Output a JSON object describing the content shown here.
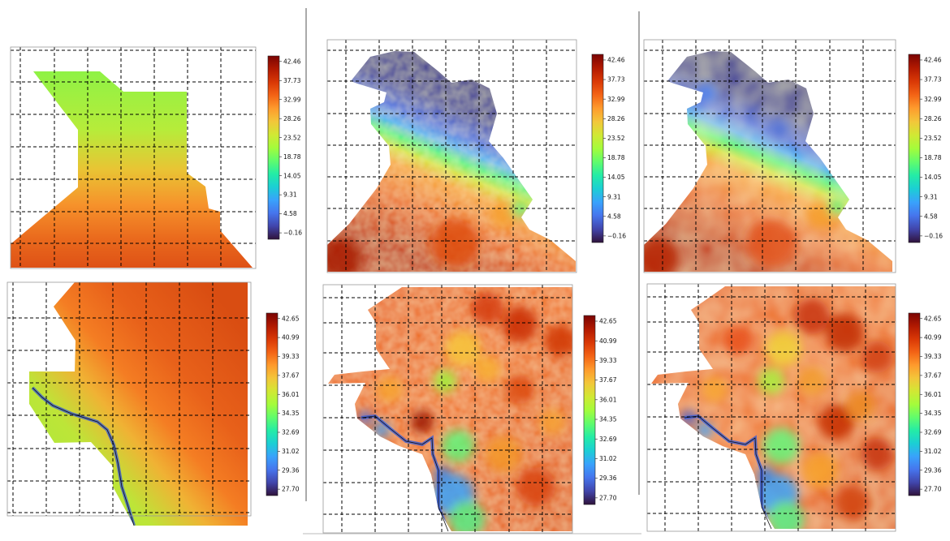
{
  "figure": {
    "description_panels": 6,
    "colormap": "turbo"
  },
  "colorbars": {
    "top": {
      "ticks": [
        "42.46",
        "37.73",
        "32.99",
        "28.26",
        "23.52",
        "18.78",
        "14.05",
        "9.31",
        "4.58",
        "−0.16"
      ],
      "min": -0.16,
      "max": 42.46
    },
    "bottom": {
      "ticks": [
        "42.65",
        "40.99",
        "39.33",
        "37.67",
        "36.01",
        "34.35",
        "32.69",
        "31.02",
        "29.36",
        "27.70"
      ],
      "min": 27.7,
      "max": 42.65
    }
  },
  "colors": {
    "turbo_stops": [
      "#30123b",
      "#4145ab",
      "#4675ed",
      "#39a2fc",
      "#1bcfd4",
      "#24eca6",
      "#61fc6c",
      "#a4fc3b",
      "#d1e834",
      "#f3c63a",
      "#fe9b2d",
      "#f36315",
      "#d93806",
      "#b11901",
      "#7a0403"
    ],
    "grid_line": "#000000",
    "frame": "#9a9a9a",
    "divider": "#555555"
  },
  "panels": [
    {
      "id": "top-left",
      "colorbar": "top",
      "style": "smooth",
      "low_cut": 0.0
    },
    {
      "id": "top-middle",
      "colorbar": "top",
      "style": "noisy",
      "low_cut": 1.0
    },
    {
      "id": "top-right",
      "colorbar": "top",
      "style": "smooth-blobs",
      "low_cut": 1.0
    },
    {
      "id": "bottom-left",
      "colorbar": "bottom",
      "style": "smooth",
      "low_cut": 0.0
    },
    {
      "id": "bottom-middle",
      "colorbar": "bottom",
      "style": "noisy",
      "low_cut": 1.0
    },
    {
      "id": "bottom-right",
      "colorbar": "bottom",
      "style": "smooth-blobs",
      "low_cut": 1.0
    }
  ]
}
